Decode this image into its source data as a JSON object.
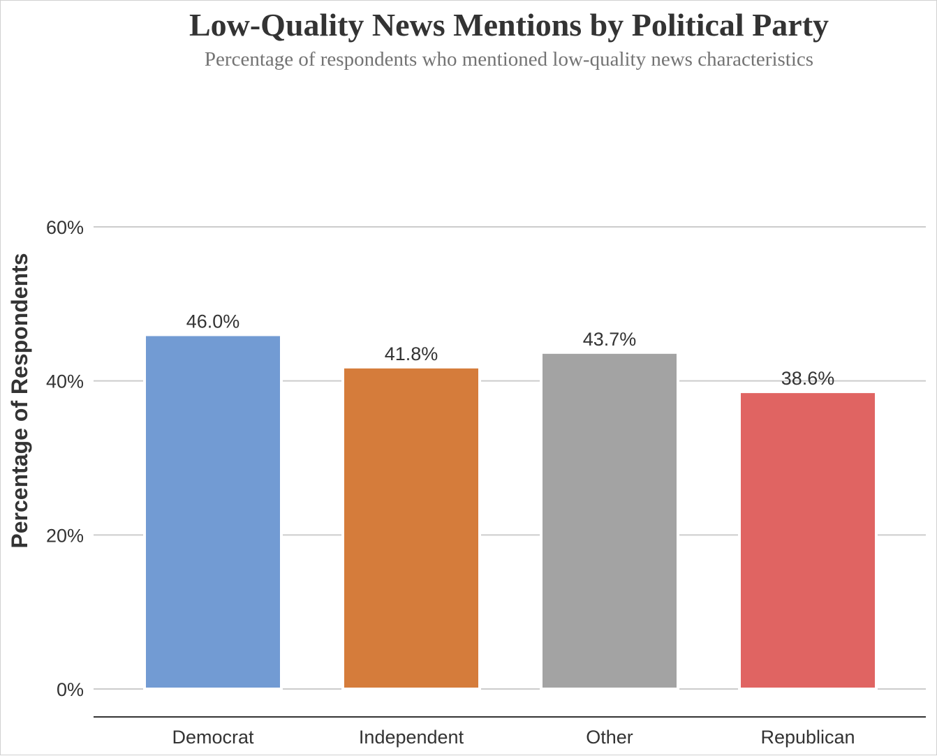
{
  "chart_data": {
    "type": "bar",
    "title": "Low-Quality News Mentions by Political Party",
    "subtitle": "Percentage of respondents who mentioned low-quality news characteristics",
    "xlabel": "",
    "ylabel": "Percentage of Respondents",
    "categories": [
      "Democrat",
      "Independent",
      "Other",
      "Republican"
    ],
    "values": [
      46.0,
      41.8,
      43.7,
      38.6
    ],
    "value_labels": [
      "46.0%",
      "41.8%",
      "43.7%",
      "38.6%"
    ],
    "colors": [
      "#729bd3",
      "#d57c3b",
      "#a3a3a3",
      "#e06462"
    ],
    "ylim": [
      0,
      60
    ],
    "yticks": [
      0,
      20,
      40,
      60
    ],
    "ytick_labels": [
      "0%",
      "20%",
      "40%",
      "60%"
    ],
    "grid": true,
    "legend": "none"
  }
}
